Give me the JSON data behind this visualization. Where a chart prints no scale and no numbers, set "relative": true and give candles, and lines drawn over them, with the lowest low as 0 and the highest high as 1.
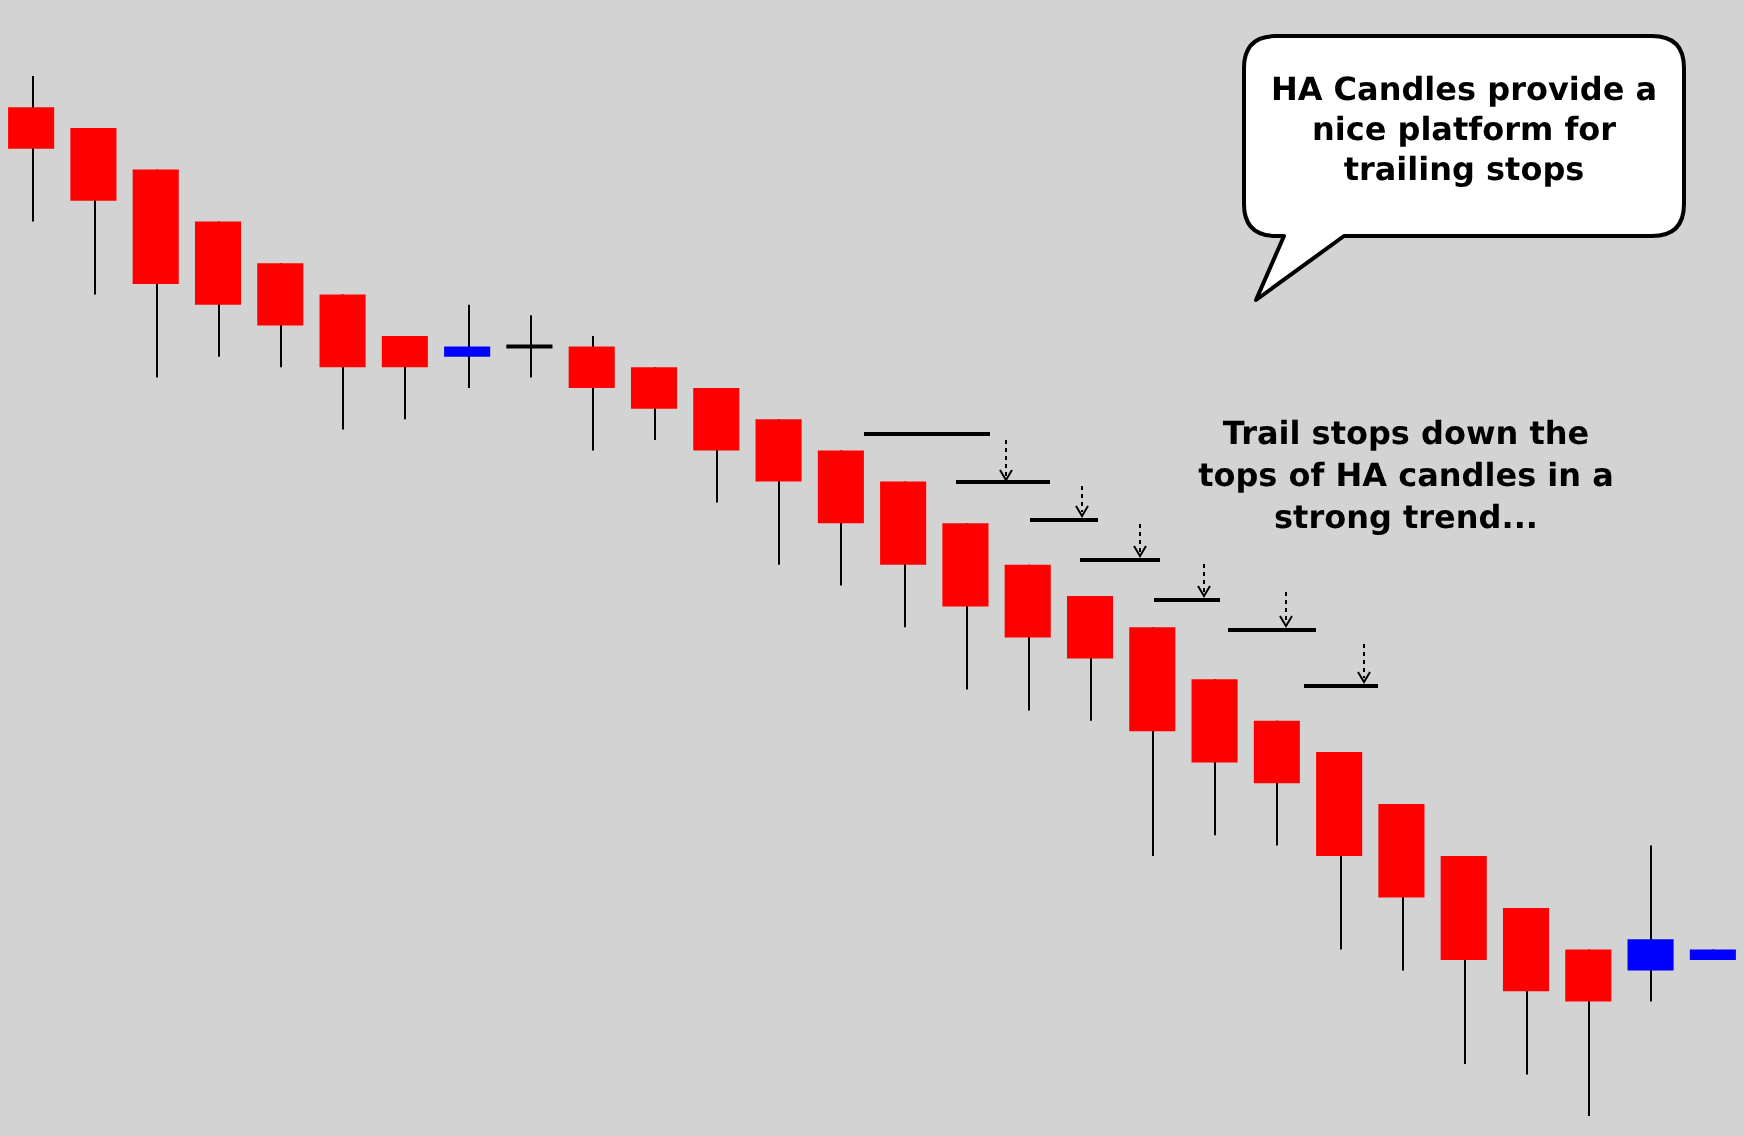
{
  "chart_data": {
    "type": "candlestick",
    "relative": true,
    "tick_labels": false,
    "categories": [
      null,
      null,
      null,
      null,
      null,
      null,
      null,
      null,
      null,
      null,
      null,
      null,
      null,
      null,
      null,
      null,
      null,
      null,
      null,
      null,
      null,
      null,
      null,
      null,
      null,
      null,
      null,
      null
    ],
    "ohlc": [
      [
        0.97,
        1.0,
        0.86,
        0.93
      ],
      [
        0.95,
        0.95,
        0.79,
        0.88
      ],
      [
        0.91,
        0.91,
        0.71,
        0.8
      ],
      [
        0.86,
        0.86,
        0.73,
        0.78
      ],
      [
        0.82,
        0.82,
        0.72,
        0.76
      ],
      [
        0.79,
        0.79,
        0.66,
        0.72
      ],
      [
        0.75,
        0.75,
        0.67,
        0.72
      ],
      [
        0.73,
        0.78,
        0.7,
        0.74
      ],
      [
        0.74,
        0.77,
        0.71,
        0.74
      ],
      [
        0.74,
        0.75,
        0.64,
        0.7
      ],
      [
        0.72,
        0.72,
        0.65,
        0.68
      ],
      [
        0.7,
        0.7,
        0.59,
        0.64
      ],
      [
        0.67,
        0.67,
        0.53,
        0.61
      ],
      [
        0.64,
        0.64,
        0.51,
        0.57
      ],
      [
        0.61,
        0.61,
        0.47,
        0.53
      ],
      [
        0.57,
        0.57,
        0.41,
        0.49
      ],
      [
        0.53,
        0.53,
        0.39,
        0.46
      ],
      [
        0.5,
        0.5,
        0.38,
        0.44
      ],
      [
        0.47,
        0.47,
        0.25,
        0.37
      ],
      [
        0.42,
        0.42,
        0.27,
        0.34
      ],
      [
        0.38,
        0.38,
        0.26,
        0.32
      ],
      [
        0.35,
        0.35,
        0.16,
        0.25
      ],
      [
        0.3,
        0.3,
        0.14,
        0.21
      ],
      [
        0.25,
        0.25,
        0.05,
        0.15
      ],
      [
        0.2,
        0.2,
        0.04,
        0.12
      ],
      [
        0.16,
        0.16,
        0.0,
        0.11
      ],
      [
        0.14,
        0.26,
        0.11,
        0.17
      ],
      [
        0.15,
        0.16,
        0.15,
        0.16
      ]
    ],
    "colors": [
      "#ff0000",
      "#ff0000",
      "#ff0000",
      "#ff0000",
      "#ff0000",
      "#ff0000",
      "#ff0000",
      "#0000ff",
      "#000000",
      "#ff0000",
      "#ff0000",
      "#ff0000",
      "#ff0000",
      "#ff0000",
      "#ff0000",
      "#ff0000",
      "#ff0000",
      "#ff0000",
      "#ff0000",
      "#ff0000",
      "#ff0000",
      "#ff0000",
      "#ff0000",
      "#ff0000",
      "#ff0000",
      "#ff0000",
      "#0000ff",
      "#0000ff"
    ],
    "annotations": [
      "HA Candles provide a nice platform for trailing stops",
      "Trail stops down the tops of HA candles in a strong trend..."
    ]
  }
}
